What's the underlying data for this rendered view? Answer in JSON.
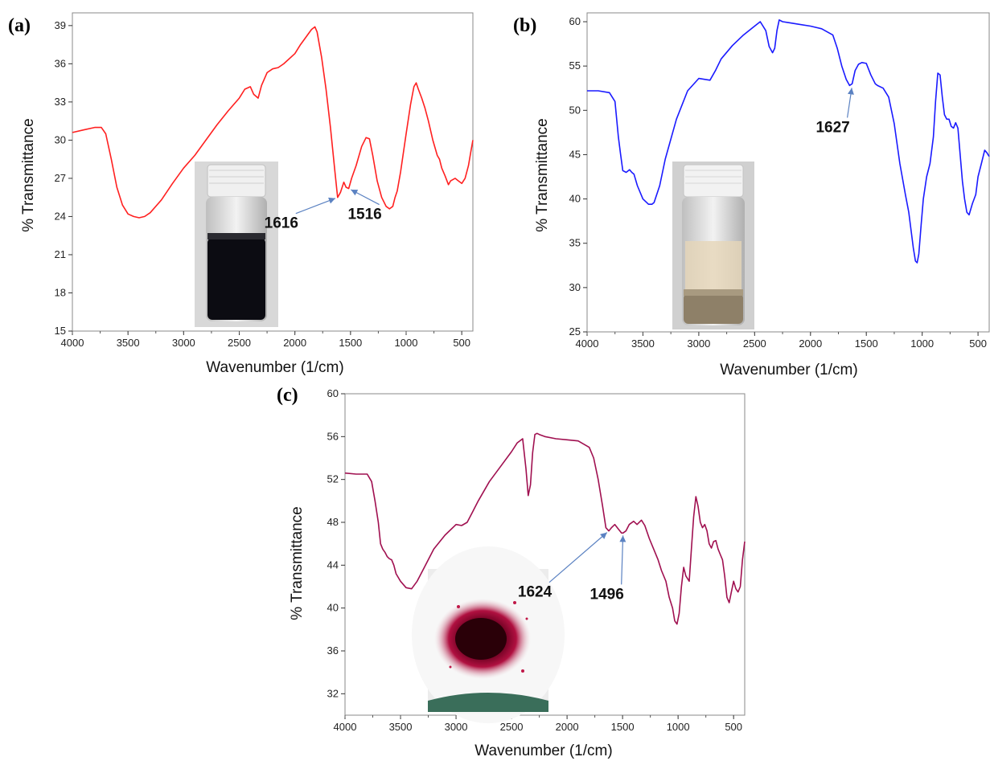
{
  "chart_data": [
    {
      "type": "line",
      "panel": "(a)",
      "xlabel": "Wavenumber (1/cm)",
      "ylabel": "% Transmittance",
      "xlim": [
        4000,
        400
      ],
      "ylim": [
        15,
        40
      ],
      "x_ticks": [
        4000,
        3500,
        3000,
        2500,
        2000,
        1500,
        1000,
        500
      ],
      "y_ticks": [
        15,
        18,
        21,
        24,
        27,
        30,
        33,
        36,
        39
      ],
      "series": [
        {
          "color": "#ff2020",
          "x": [
            4000,
            3900,
            3800,
            3740,
            3700,
            3650,
            3600,
            3550,
            3500,
            3450,
            3400,
            3350,
            3300,
            3200,
            3100,
            3000,
            2900,
            2800,
            2700,
            2600,
            2500,
            2450,
            2400,
            2370,
            2330,
            2300,
            2250,
            2200,
            2150,
            2100,
            2000,
            1950,
            1900,
            1850,
            1820,
            1800,
            1760,
            1720,
            1680,
            1640,
            1616,
            1590,
            1560,
            1540,
            1516,
            1490,
            1450,
            1400,
            1360,
            1330,
            1300,
            1260,
            1220,
            1180,
            1150,
            1120,
            1100,
            1080,
            1050,
            1000,
            960,
            930,
            910,
            890,
            860,
            830,
            800,
            760,
            720,
            700,
            680,
            650,
            620,
            600,
            560,
            530,
            500,
            470,
            440,
            420,
            400
          ],
          "y": [
            30.6,
            30.8,
            31.0,
            31.0,
            30.5,
            28.5,
            26.3,
            24.9,
            24.2,
            24.0,
            23.9,
            24.0,
            24.3,
            25.3,
            26.6,
            27.8,
            28.8,
            30.0,
            31.2,
            32.3,
            33.3,
            34.0,
            34.2,
            33.6,
            33.3,
            34.3,
            35.3,
            35.6,
            35.7,
            36.0,
            36.8,
            37.5,
            38.1,
            38.7,
            38.9,
            38.5,
            36.5,
            34.0,
            31.0,
            27.5,
            25.5,
            25.9,
            26.7,
            26.3,
            26.2,
            27.0,
            28.0,
            29.5,
            30.2,
            30.1,
            28.8,
            26.8,
            25.5,
            24.8,
            24.6,
            24.8,
            25.5,
            26.0,
            27.5,
            30.5,
            32.8,
            34.2,
            34.5,
            34.0,
            33.3,
            32.5,
            31.5,
            30.0,
            28.8,
            28.5,
            27.8,
            27.2,
            26.5,
            26.8,
            27.0,
            26.8,
            26.6,
            27.0,
            28.0,
            29.0,
            30.0
          ]
        }
      ],
      "annotations": [
        {
          "text": "1616",
          "x": 1616,
          "y": 25.5
        },
        {
          "text": "1516",
          "x": 1516,
          "y": 26.2
        }
      ]
    },
    {
      "type": "line",
      "panel": "(b)",
      "xlabel": "Wavenumber (1/cm)",
      "ylabel": "% Transmittance",
      "xlim": [
        4000,
        400
      ],
      "ylim": [
        25,
        61
      ],
      "x_ticks": [
        4000,
        3500,
        3000,
        2500,
        2000,
        1500,
        1000,
        500
      ],
      "y_ticks": [
        25,
        30,
        35,
        40,
        45,
        50,
        55,
        60
      ],
      "series": [
        {
          "color": "#1a1aff",
          "x": [
            4000,
            3900,
            3800,
            3750,
            3720,
            3700,
            3680,
            3650,
            3620,
            3600,
            3580,
            3550,
            3500,
            3450,
            3420,
            3400,
            3350,
            3300,
            3200,
            3100,
            3000,
            2950,
            2900,
            2850,
            2800,
            2700,
            2600,
            2500,
            2450,
            2400,
            2370,
            2340,
            2320,
            2300,
            2280,
            2250,
            2200,
            2100,
            2000,
            1900,
            1800,
            1760,
            1720,
            1680,
            1650,
            1627,
            1600,
            1570,
            1540,
            1500,
            1460,
            1420,
            1400,
            1350,
            1300,
            1250,
            1200,
            1150,
            1120,
            1100,
            1080,
            1060,
            1045,
            1030,
            1010,
            990,
            960,
            930,
            900,
            880,
            860,
            840,
            820,
            800,
            780,
            760,
            740,
            720,
            700,
            680,
            660,
            640,
            620,
            600,
            580,
            550,
            520,
            500,
            470,
            440,
            420,
            400
          ],
          "y": [
            52.2,
            52.2,
            52.0,
            51.0,
            47.0,
            45.0,
            43.2,
            43.0,
            43.3,
            43.0,
            42.8,
            41.5,
            40.0,
            39.4,
            39.4,
            39.6,
            41.5,
            44.5,
            49.0,
            52.2,
            53.6,
            53.5,
            53.4,
            54.5,
            55.8,
            57.3,
            58.5,
            59.5,
            60.0,
            59.0,
            57.2,
            56.5,
            57.0,
            59.0,
            60.2,
            60.0,
            59.9,
            59.7,
            59.5,
            59.2,
            58.5,
            57.0,
            55.0,
            53.5,
            52.8,
            53.0,
            54.5,
            55.2,
            55.4,
            55.3,
            54.0,
            53.0,
            52.8,
            52.5,
            51.5,
            48.5,
            44.0,
            40.5,
            38.5,
            36.5,
            34.5,
            33.0,
            32.8,
            33.8,
            37.0,
            40.0,
            42.5,
            44.0,
            47.0,
            51.0,
            54.2,
            54.0,
            51.5,
            49.5,
            49.0,
            49.0,
            48.2,
            48.0,
            48.6,
            48.0,
            45.0,
            42.0,
            40.0,
            38.5,
            38.2,
            39.5,
            40.5,
            42.5,
            44.0,
            45.5,
            45.2,
            44.8
          ]
        }
      ],
      "annotations": [
        {
          "text": "1627",
          "x": 1627,
          "y": 52.8
        }
      ]
    },
    {
      "type": "line",
      "panel": "(c)",
      "xlabel": "Wavenumber (1/cm)",
      "ylabel": "% Transmittance",
      "xlim": [
        4000,
        400
      ],
      "ylim": [
        30,
        60
      ],
      "x_ticks": [
        4000,
        3500,
        3000,
        2500,
        2000,
        1500,
        1000,
        500
      ],
      "y_ticks": [
        32,
        36,
        40,
        44,
        48,
        52,
        56,
        60
      ],
      "series": [
        {
          "color": "#a01050",
          "x": [
            4000,
            3900,
            3800,
            3760,
            3730,
            3700,
            3680,
            3660,
            3640,
            3620,
            3600,
            3580,
            3560,
            3540,
            3500,
            3450,
            3400,
            3350,
            3300,
            3200,
            3100,
            3000,
            2950,
            2900,
            2850,
            2800,
            2700,
            2600,
            2500,
            2450,
            2400,
            2370,
            2350,
            2330,
            2310,
            2290,
            2270,
            2250,
            2200,
            2100,
            2000,
            1900,
            1800,
            1760,
            1720,
            1680,
            1650,
            1624,
            1600,
            1570,
            1540,
            1510,
            1496,
            1470,
            1440,
            1400,
            1370,
            1330,
            1300,
            1260,
            1220,
            1180,
            1150,
            1110,
            1080,
            1050,
            1030,
            1010,
            990,
            970,
            950,
            930,
            900,
            880,
            860,
            840,
            820,
            800,
            780,
            760,
            740,
            720,
            700,
            680,
            660,
            640,
            620,
            600,
            580,
            560,
            540,
            520,
            500,
            480,
            460,
            440,
            420,
            400
          ],
          "y": [
            52.6,
            52.5,
            52.5,
            51.8,
            50.0,
            48.0,
            46.0,
            45.5,
            45.2,
            44.8,
            44.6,
            44.5,
            44.0,
            43.2,
            42.5,
            41.9,
            41.8,
            42.5,
            43.5,
            45.5,
            46.8,
            47.8,
            47.7,
            48.0,
            49.0,
            50.0,
            51.8,
            53.2,
            54.6,
            55.4,
            55.8,
            53.0,
            50.5,
            51.5,
            54.5,
            56.2,
            56.3,
            56.2,
            56.0,
            55.8,
            55.7,
            55.6,
            55.0,
            54.0,
            52.0,
            49.5,
            47.5,
            47.2,
            47.5,
            47.8,
            47.4,
            47.0,
            47.0,
            47.2,
            47.8,
            48.1,
            47.8,
            48.2,
            47.7,
            46.5,
            45.5,
            44.5,
            43.5,
            42.5,
            41.0,
            40.0,
            38.8,
            38.5,
            39.5,
            42.0,
            43.8,
            43.0,
            42.5,
            45.5,
            48.5,
            50.4,
            49.5,
            48.0,
            47.5,
            47.8,
            47.2,
            46.0,
            45.6,
            46.2,
            46.3,
            45.5,
            45.0,
            44.5,
            43.0,
            41.0,
            40.5,
            41.5,
            42.5,
            41.8,
            41.5,
            42.0,
            44.5,
            46.2
          ]
        }
      ],
      "annotations": [
        {
          "text": "1624",
          "x": 1624,
          "y": 47.2
        },
        {
          "text": "1496",
          "x": 1496,
          "y": 47.0
        }
      ]
    }
  ]
}
